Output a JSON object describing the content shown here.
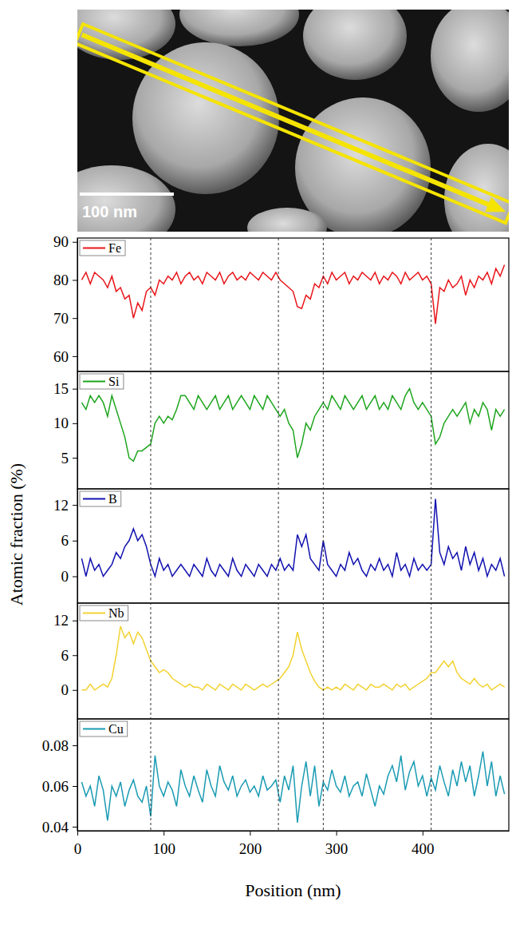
{
  "chart_data": {
    "type": "line",
    "xlabel": "Position (nm)",
    "ylabel": "Atomic fraction (%)",
    "xlim": [
      0,
      500
    ],
    "xticks": [
      0,
      100,
      200,
      300,
      400
    ],
    "legend": "upper left",
    "vlines": [
      85,
      233,
      285,
      410
    ],
    "x": [
      5,
      10,
      15,
      20,
      25,
      30,
      35,
      40,
      45,
      50,
      55,
      60,
      65,
      70,
      75,
      80,
      85,
      90,
      95,
      100,
      105,
      110,
      115,
      120,
      125,
      130,
      135,
      140,
      145,
      150,
      155,
      160,
      165,
      170,
      175,
      180,
      185,
      190,
      195,
      200,
      205,
      210,
      215,
      220,
      225,
      230,
      235,
      240,
      245,
      250,
      255,
      260,
      265,
      270,
      275,
      280,
      285,
      290,
      295,
      300,
      305,
      310,
      315,
      320,
      325,
      330,
      335,
      340,
      345,
      350,
      355,
      360,
      365,
      370,
      375,
      380,
      385,
      390,
      395,
      400,
      405,
      410,
      415,
      420,
      425,
      430,
      435,
      440,
      445,
      450,
      455,
      460,
      465,
      470,
      475,
      480,
      485,
      490,
      495
    ],
    "series": [
      {
        "name": "Fe",
        "color": "#e8161b",
        "ylim": [
          56,
          91
        ],
        "yticks": [
          60,
          70,
          80,
          90
        ],
        "values": [
          80,
          82,
          79,
          82,
          81,
          80,
          78,
          81,
          77,
          78,
          75,
          76,
          70,
          74,
          72,
          77,
          78,
          76,
          80,
          79,
          81,
          80,
          82,
          79,
          81,
          82,
          80,
          81,
          79,
          82,
          81,
          80,
          82,
          79,
          81,
          82,
          80,
          81,
          80,
          82,
          81,
          80,
          82,
          81,
          80,
          82,
          80,
          79,
          78,
          77,
          73,
          72.5,
          76,
          75,
          79,
          78,
          81,
          79,
          82,
          80,
          81,
          82,
          79,
          81,
          80,
          82,
          81,
          80,
          82,
          79,
          81,
          80,
          82,
          81,
          79,
          82,
          80,
          81,
          82,
          80,
          81,
          79,
          68.5,
          78,
          77,
          80,
          78,
          79,
          81,
          76,
          80,
          78,
          81,
          80,
          82,
          79,
          83,
          81,
          84
        ]
      },
      {
        "name": "Si",
        "color": "#1fa51f",
        "ylim": [
          0.5,
          17.5
        ],
        "yticks": [
          5,
          10,
          15
        ],
        "values": [
          13,
          12,
          14,
          13,
          14,
          13,
          11,
          14,
          12,
          10,
          8,
          5,
          4.5,
          6,
          6,
          6.5,
          7,
          10,
          11,
          10,
          11,
          10.5,
          12,
          14,
          14,
          13,
          12,
          14,
          13,
          12,
          13,
          14,
          12,
          13,
          14,
          12,
          13,
          14,
          13,
          12,
          14,
          13,
          12,
          14,
          13,
          12,
          11,
          12,
          10,
          9,
          5,
          7,
          10,
          9,
          11,
          12,
          13,
          12,
          14,
          13,
          12,
          14,
          13,
          12,
          13,
          14,
          12,
          13,
          14,
          12,
          13,
          12,
          14,
          13,
          12,
          14,
          15,
          13,
          12,
          13,
          12,
          11,
          7,
          8,
          10,
          11,
          12,
          11,
          12,
          13,
          10,
          12,
          11,
          13,
          12,
          9,
          12,
          11,
          12
        ]
      },
      {
        "name": "B",
        "color": "#1212b0",
        "ylim": [
          -4.5,
          14.7
        ],
        "yticks": [
          0,
          6,
          12
        ],
        "values": [
          3,
          0,
          3,
          1,
          2,
          0,
          1,
          2,
          4,
          3,
          5,
          6,
          8,
          6,
          7,
          5,
          2,
          0,
          3,
          1,
          2,
          0,
          1,
          2,
          1,
          0,
          2,
          1,
          0,
          3,
          1,
          0,
          2,
          1,
          0,
          3,
          1,
          0,
          2,
          1,
          0,
          2,
          1,
          0,
          2,
          1,
          3,
          1,
          2,
          1,
          7,
          5,
          7,
          3,
          2,
          1,
          6,
          2,
          1,
          0,
          2,
          1,
          4,
          2,
          3,
          1,
          0,
          2,
          1,
          3,
          1,
          2,
          0,
          4,
          1,
          2,
          0,
          3,
          1,
          2,
          1,
          2,
          13,
          4,
          2,
          5,
          3,
          4,
          1,
          5,
          2,
          4,
          1,
          3,
          0,
          2,
          1,
          3,
          0
        ]
      },
      {
        "name": "Nb",
        "color": "#f2d230",
        "ylim": [
          -5,
          15
        ],
        "yticks": [
          0,
          6,
          12
        ],
        "values": [
          0,
          0,
          1,
          0,
          0.5,
          1,
          0.5,
          2,
          6,
          11,
          9,
          10,
          8,
          10,
          9,
          7,
          5,
          4,
          3,
          3.5,
          3,
          2,
          1.5,
          1,
          0.5,
          1,
          0.5,
          0.5,
          0,
          1,
          0.5,
          0,
          1,
          0.5,
          0,
          1,
          0.5,
          0,
          1,
          0.5,
          0,
          0.5,
          1,
          0.5,
          1,
          1.5,
          2,
          3,
          4,
          6,
          10,
          7,
          5,
          3,
          1.5,
          0.5,
          0,
          0.5,
          0,
          0.5,
          0,
          1,
          0.5,
          0,
          1,
          0.5,
          0,
          1,
          0.5,
          0.5,
          1,
          0.5,
          0,
          1,
          0.5,
          1,
          0,
          0.5,
          1,
          1.5,
          2,
          3,
          3,
          4,
          5,
          4,
          5,
          3,
          2,
          1.5,
          1,
          2,
          1,
          0.5,
          1,
          0,
          0.5,
          1,
          0.5
        ]
      },
      {
        "name": "Cu",
        "color": "#1a9bb3",
        "ylim": [
          0.038,
          0.093
        ],
        "yticks": [
          0.04,
          0.06,
          0.08
        ],
        "values": [
          0.062,
          0.055,
          0.06,
          0.05,
          0.065,
          0.058,
          0.043,
          0.06,
          0.055,
          0.062,
          0.05,
          0.058,
          0.063,
          0.055,
          0.052,
          0.06,
          0.045,
          0.075,
          0.06,
          0.055,
          0.062,
          0.058,
          0.05,
          0.068,
          0.06,
          0.055,
          0.065,
          0.058,
          0.052,
          0.068,
          0.06,
          0.055,
          0.07,
          0.062,
          0.058,
          0.065,
          0.055,
          0.06,
          0.063,
          0.057,
          0.06,
          0.055,
          0.065,
          0.058,
          0.06,
          0.063,
          0.052,
          0.065,
          0.058,
          0.07,
          0.042,
          0.06,
          0.072,
          0.055,
          0.07,
          0.05,
          0.062,
          0.058,
          0.068,
          0.06,
          0.057,
          0.065,
          0.055,
          0.06,
          0.062,
          0.055,
          0.066,
          0.058,
          0.05,
          0.06,
          0.056,
          0.065,
          0.07,
          0.062,
          0.075,
          0.058,
          0.067,
          0.072,
          0.06,
          0.065,
          0.055,
          0.064,
          0.058,
          0.07,
          0.062,
          0.055,
          0.068,
          0.06,
          0.072,
          0.062,
          0.07,
          0.055,
          0.065,
          0.077,
          0.06,
          0.072,
          0.055,
          0.065,
          0.056
        ]
      }
    ]
  },
  "image": {
    "scale_bar": "100 nm"
  }
}
